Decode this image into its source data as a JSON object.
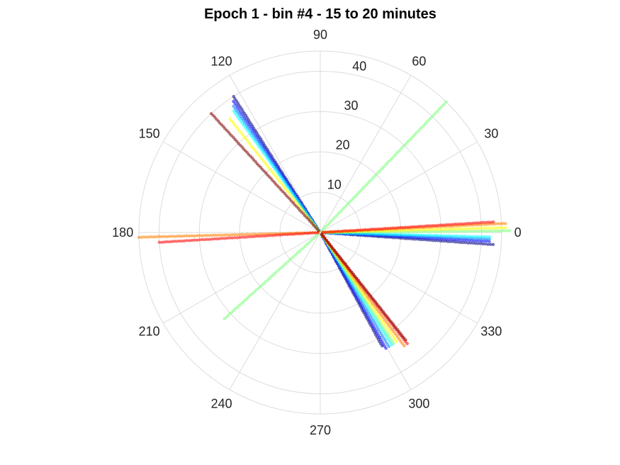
{
  "chart_data": {
    "type": "polar-scatter",
    "title": "Epoch 1 - bin #4 - 15 to 20 minutes",
    "theta_ticks": [
      0,
      30,
      60,
      90,
      120,
      150,
      180,
      210,
      240,
      270,
      300,
      330
    ],
    "theta_tick_labels": [
      "0",
      "30",
      "60",
      "90",
      "120",
      "150",
      "180",
      "210",
      "240",
      "270",
      "300",
      "330"
    ],
    "r_ticks": [
      10,
      20,
      30,
      40
    ],
    "r_tick_labels": [
      "10",
      "20",
      "30",
      "40"
    ],
    "rlim": [
      0,
      45
    ],
    "grid": true,
    "colormap": "jet",
    "series": [
      {
        "color": "#00007f",
        "rays": [
          {
            "theta": 122.5,
            "r": 40
          },
          {
            "theta": 356.0,
            "r": 43
          },
          {
            "theta": 298.5,
            "r": 32
          }
        ]
      },
      {
        "color": "#0000ff",
        "rays": [
          {
            "theta": 123.5,
            "r": 39
          },
          {
            "theta": 357.0,
            "r": 42
          },
          {
            "theta": 299.5,
            "r": 33
          }
        ]
      },
      {
        "color": "#007fff",
        "rays": [
          {
            "theta": 124.5,
            "r": 38
          },
          {
            "theta": 357.8,
            "r": 42
          },
          {
            "theta": 301.0,
            "r": 33
          }
        ]
      },
      {
        "color": "#00ffff",
        "rays": [
          {
            "theta": 125.5,
            "r": 37
          },
          {
            "theta": 358.5,
            "r": 42
          },
          {
            "theta": 302.5,
            "r": 33
          }
        ]
      },
      {
        "color": "#7fff7f",
        "rays": [
          {
            "theta": 46.0,
            "r": 45
          },
          {
            "theta": 0.5,
            "r": 47
          },
          {
            "theta": 303.5,
            "r": 33
          },
          {
            "theta": 222.0,
            "r": 32
          }
        ]
      },
      {
        "color": "#ffff00",
        "rays": [
          {
            "theta": 128.5,
            "r": 36
          },
          {
            "theta": 1.5,
            "r": 46
          },
          {
            "theta": 305.0,
            "r": 33
          }
        ]
      },
      {
        "color": "#ff7f00",
        "rays": [
          {
            "theta": 2.8,
            "r": 46
          },
          {
            "theta": 181.5,
            "r": 45
          },
          {
            "theta": 306.5,
            "r": 35
          }
        ]
      },
      {
        "color": "#ff0000",
        "rays": [
          {
            "theta": 3.5,
            "r": 43
          },
          {
            "theta": 183.5,
            "r": 40
          },
          {
            "theta": 308.0,
            "r": 35
          }
        ]
      },
      {
        "color": "#7f0000",
        "rays": [
          {
            "theta": 132.5,
            "r": 40
          },
          {
            "theta": 308.5,
            "r": 34
          }
        ]
      }
    ]
  }
}
